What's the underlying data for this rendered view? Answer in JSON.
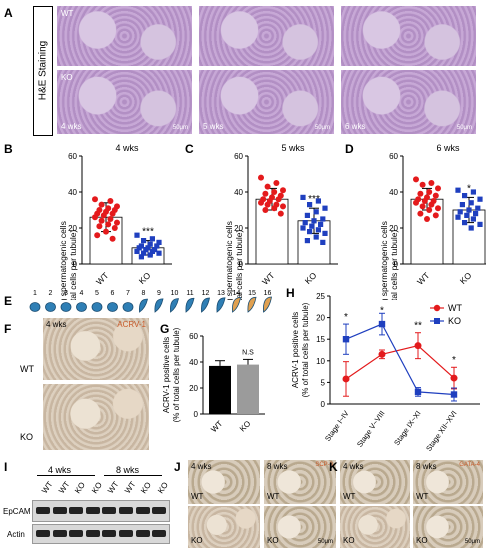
{
  "panels": {
    "A": "A",
    "B": "B",
    "C": "C",
    "D": "D",
    "E": "E",
    "F": "F",
    "G": "G",
    "H": "H",
    "I": "I",
    "J": "J",
    "K": "K"
  },
  "panelA": {
    "row_label": "H&E Staining",
    "wt": "WT",
    "ko": "KO",
    "weeks": [
      "4 wks",
      "5 wks",
      "6 wks"
    ],
    "scale": "50μm"
  },
  "scatter_ylabel1": "Elongating spermatogenic cells",
  "scatter_ylabel2": "(% of total cells per tubule)",
  "chart_data": [
    {
      "type": "scatter",
      "panel": "B",
      "title": "4 wks",
      "categories": [
        "WT",
        "KO"
      ],
      "ylim": [
        0,
        60
      ],
      "yticks": [
        "0",
        "20",
        "40",
        "60"
      ],
      "significance": "***",
      "series": [
        {
          "name": "WT",
          "mean": 26,
          "sd": 8,
          "values": [
            36,
            35,
            33,
            32,
            31,
            30,
            30,
            29,
            28,
            28,
            27,
            26,
            25,
            24,
            23,
            22,
            21,
            20,
            18,
            16,
            14
          ]
        },
        {
          "name": "KO",
          "mean": 9,
          "sd": 4,
          "values": [
            16,
            14,
            13,
            12,
            11,
            10,
            10,
            9,
            9,
            8,
            8,
            7,
            7,
            6,
            6,
            5,
            4
          ]
        }
      ]
    },
    {
      "type": "scatter",
      "panel": "C",
      "title": "5 wks",
      "categories": [
        "WT",
        "KO"
      ],
      "ylim": [
        0,
        60
      ],
      "yticks": [
        "0",
        "20",
        "40",
        "60"
      ],
      "significance": "***",
      "series": [
        {
          "name": "WT",
          "mean": 36,
          "sd": 6,
          "values": [
            48,
            45,
            43,
            41,
            40,
            39,
            38,
            37,
            36,
            36,
            35,
            34,
            33,
            33,
            32,
            31,
            30,
            28
          ]
        },
        {
          "name": "KO",
          "mean": 24,
          "sd": 7,
          "values": [
            37,
            35,
            33,
            31,
            29,
            27,
            25,
            24,
            23,
            22,
            21,
            20,
            19,
            18,
            17,
            15,
            13,
            12
          ]
        }
      ]
    },
    {
      "type": "scatter",
      "panel": "D",
      "title": "6 wks",
      "categories": [
        "WT",
        "KO"
      ],
      "ylim": [
        0,
        60
      ],
      "yticks": [
        "0",
        "20",
        "40",
        "60"
      ],
      "significance": "*",
      "series": [
        {
          "name": "WT",
          "mean": 36,
          "sd": 6,
          "values": [
            47,
            45,
            44,
            42,
            40,
            39,
            38,
            37,
            36,
            35,
            35,
            34,
            33,
            32,
            31,
            30,
            28,
            27,
            25
          ]
        },
        {
          "name": "KO",
          "mean": 30,
          "sd": 7,
          "values": [
            41,
            40,
            38,
            36,
            34,
            33,
            31,
            30,
            29,
            28,
            27,
            26,
            25,
            23,
            22,
            20
          ]
        }
      ]
    },
    {
      "type": "bar",
      "panel": "G",
      "categories": [
        "WT",
        "KO"
      ],
      "values": [
        37,
        38
      ],
      "errors": [
        4,
        4
      ],
      "ylim": [
        0,
        60
      ],
      "yticks": [
        "0",
        "20",
        "40",
        "60"
      ],
      "significance": "N.S",
      "ylabel": [
        "ACRV-1 positive cells",
        "(% of total cells per tubule)"
      ],
      "colors": [
        "#000000",
        "#9b9b9b"
      ]
    },
    {
      "type": "line",
      "panel": "H",
      "categories": [
        "Stage I~IV",
        "Stage V~VIII",
        "Stage IX~XI",
        "Stage XII~XVI"
      ],
      "ylim": [
        0,
        25
      ],
      "yticks": [
        "0",
        "5",
        "10",
        "15",
        "20",
        "25"
      ],
      "ylabel": [
        "ACRV-1 positive cells",
        "(% of total cells per tubule)"
      ],
      "significance": [
        "*",
        "*",
        "**",
        "*"
      ],
      "series": [
        {
          "name": "WT",
          "values": [
            5.8,
            11.5,
            13.5,
            6
          ],
          "errors": [
            4,
            1,
            3,
            2.5
          ],
          "color": "#e31a1c"
        },
        {
          "name": "KO",
          "values": [
            15,
            18.5,
            2.8,
            2.2
          ],
          "errors": [
            3.5,
            2.5,
            1,
            1.5
          ],
          "color": "#1f3fbf"
        }
      ]
    }
  ],
  "panelE": {
    "stages": [
      "1",
      "2",
      "3",
      "4",
      "5",
      "6",
      "7",
      "8",
      "9",
      "10",
      "11",
      "12",
      "13",
      "14",
      "15",
      "16"
    ]
  },
  "panelF": {
    "weeks": "4 wks",
    "marker": "ACRV-1",
    "wt": "WT",
    "ko": "KO"
  },
  "panelI": {
    "groups": [
      "4 wks",
      "8 wks"
    ],
    "lanes": [
      "WT",
      "WT",
      "KO",
      "KO",
      "WT",
      "WT",
      "KO",
      "KO"
    ],
    "rows": [
      "EpCAM",
      "Actin"
    ]
  },
  "panelJ": {
    "weeks": [
      "4 wks",
      "8 wks"
    ],
    "marker": "SCP-3",
    "wt": "WT",
    "ko": "KO",
    "scale": "50μm"
  },
  "panelK": {
    "weeks": [
      "4 wks",
      "8 wks"
    ],
    "marker": "GATA-4",
    "wt": "WT",
    "ko": "KO",
    "scale": "50μm"
  }
}
